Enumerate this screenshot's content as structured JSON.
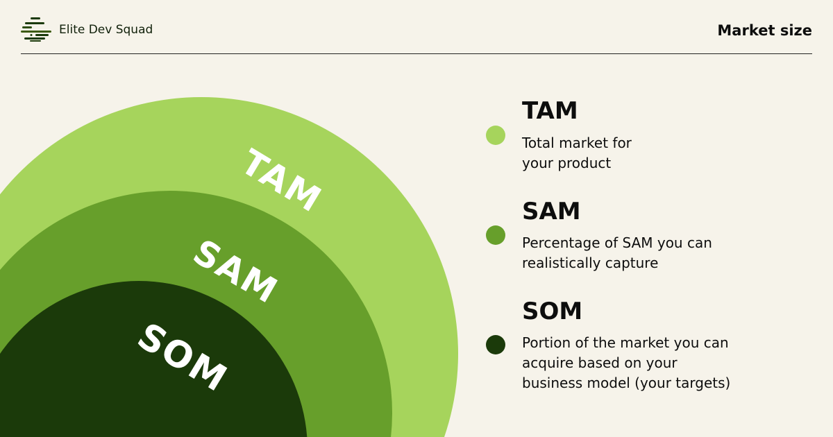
{
  "header": {
    "brand": "Elite Dev Squad",
    "title": "Market size"
  },
  "colors": {
    "tam": "#a6d45c",
    "sam": "#679f2b",
    "som": "#1b3a0a",
    "background": "#f6f3ea"
  },
  "rings": [
    {
      "label": "TAM"
    },
    {
      "label": "SAM"
    },
    {
      "label": "SOM"
    }
  ],
  "legend": [
    {
      "title": "TAM",
      "line1": "Total market for",
      "line2": "your product"
    },
    {
      "title": "SAM",
      "line1": "Percentage of SAM you can",
      "line2": "realistically capture"
    },
    {
      "title": "SOM",
      "line1": "Portion of the market you can",
      "line2": "acquire based on your",
      "line3": "business model (your targets)"
    }
  ]
}
